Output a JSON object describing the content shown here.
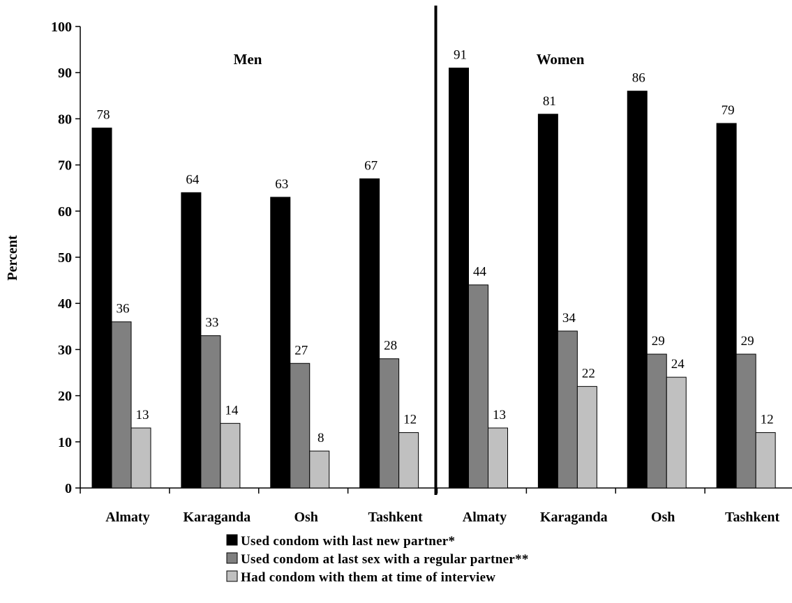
{
  "chart_data": {
    "type": "bar",
    "ylabel": "Percent",
    "xlabel": "",
    "ylim": [
      0,
      100
    ],
    "yticks": [
      0,
      10,
      20,
      30,
      40,
      50,
      60,
      70,
      80,
      90,
      100
    ],
    "grid": false,
    "legend_position": "bottom",
    "groups": [
      {
        "title": "Men",
        "categories": [
          "Almaty",
          "Karaganda",
          "Osh",
          "Tashkent"
        ],
        "series": [
          {
            "name": "Used condom with last new partner*",
            "values": [
              78,
              64,
              63,
              67
            ]
          },
          {
            "name": "Used condom at last sex with a regular partner**",
            "values": [
              36,
              33,
              27,
              28
            ]
          },
          {
            "name": "Had condom with them at time of interview",
            "values": [
              13,
              14,
              8,
              12
            ]
          }
        ]
      },
      {
        "title": "Women",
        "categories": [
          "Almaty",
          "Karaganda",
          "Osh",
          "Tashkent"
        ],
        "series": [
          {
            "name": "Used condom with last new partner*",
            "values": [
              91,
              81,
              86,
              79
            ]
          },
          {
            "name": "Used condom at last sex with a regular partner**",
            "values": [
              44,
              34,
              29,
              29
            ]
          },
          {
            "name": "Had condom with them at time of interview",
            "values": [
              13,
              22,
              24,
              12
            ]
          }
        ]
      }
    ],
    "legend": [
      "Used condom with last new partner*",
      "Used condom at last sex with a regular partner**",
      "Had condom with them at time of interview"
    ],
    "colors": [
      "#000000",
      "#808080",
      "#c0c0c0"
    ]
  }
}
